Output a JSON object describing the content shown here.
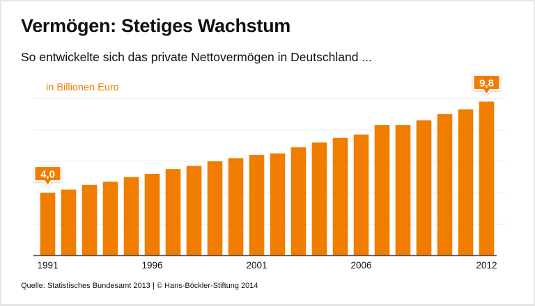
{
  "title": "Vermögen: Stetiges Wachstum",
  "subtitle": "So entwickelte sich das private Nettovermögen in Deutschland ...",
  "source": "Quelle: Statistisches Bundesamt 2013 | © Hans-Böckler-Stiftung 2014",
  "colors": {
    "bar": "#f07d00",
    "axis": "#555555",
    "grid": "#eeeeee"
  },
  "chart_data": {
    "type": "bar",
    "ylabel": "in Billionen Euro",
    "categories": [
      "1991",
      "1992",
      "1993",
      "1994",
      "1995",
      "1996",
      "1997",
      "1998",
      "1999",
      "2000",
      "2001",
      "2002",
      "2003",
      "2004",
      "2005",
      "2006",
      "2007",
      "2008",
      "2009",
      "2010",
      "2011",
      "2012"
    ],
    "values": [
      4.0,
      4.2,
      4.5,
      4.7,
      5.0,
      5.2,
      5.5,
      5.7,
      6.0,
      6.2,
      6.4,
      6.5,
      6.9,
      7.2,
      7.5,
      7.7,
      8.3,
      8.3,
      8.6,
      9.0,
      9.3,
      9.8
    ],
    "tick_labels": [
      "1991",
      "1996",
      "2001",
      "2006",
      "2012"
    ],
    "data_labels": [
      {
        "category": "1991",
        "text": "4,0"
      },
      {
        "category": "2012",
        "text": "9,8"
      }
    ],
    "ylim": [
      0,
      10
    ],
    "gridlines": [
      2,
      4,
      6,
      8,
      10
    ],
    "grid": true
  }
}
